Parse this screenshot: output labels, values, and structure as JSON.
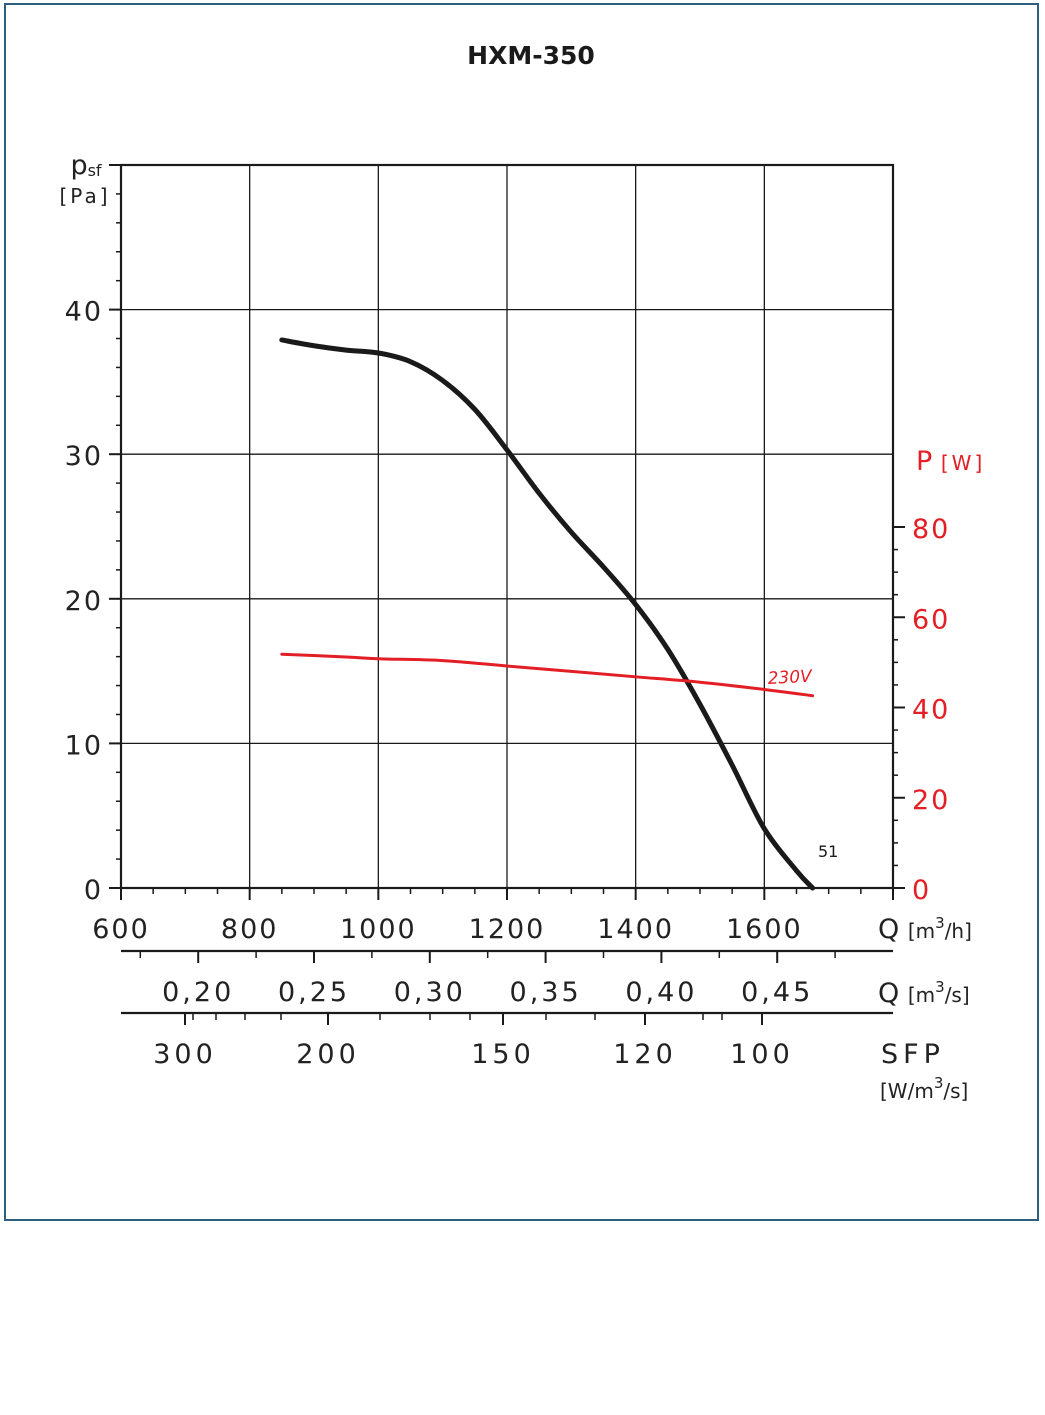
{
  "chart_data": {
    "type": "line",
    "title": "HXM-350",
    "left_axis": {
      "label_symbol": "p",
      "label_sub": "sf",
      "label_unit": "[Pa]",
      "range": [
        0,
        50
      ],
      "ticks": [
        0,
        10,
        20,
        30,
        40
      ],
      "tick_labels": [
        "0",
        "10",
        "20",
        "30",
        "40"
      ]
    },
    "right_axis": {
      "label_symbol": "P",
      "label_unit": "[W]",
      "color": "#e31e24",
      "range": [
        0,
        80
      ],
      "ticks": [
        0,
        20,
        40,
        60,
        80
      ],
      "tick_labels": [
        "0",
        "20",
        "40",
        "60",
        "80"
      ]
    },
    "x_axis_m3h": {
      "label": "Q",
      "unit_pre": "[m",
      "unit_sup": "3",
      "unit_post": "/h]",
      "range": [
        600,
        1800
      ],
      "ticks": [
        600,
        800,
        1000,
        1200,
        1400,
        1600
      ],
      "tick_labels": [
        "600",
        "800",
        "1000",
        "1200",
        "1400",
        "1600"
      ]
    },
    "x_axis_m3s": {
      "label": "Q",
      "unit_pre": "[m",
      "unit_sup": "3",
      "unit_post": "/s]",
      "ticks": [
        0.2,
        0.25,
        0.3,
        0.35,
        0.4,
        0.45
      ],
      "tick_labels": [
        "0,20",
        "0,25",
        "0,30",
        "0,35",
        "0,40",
        "0,45"
      ]
    },
    "sfp_axis": {
      "label": "SFP",
      "unit_pre": "[W/m",
      "unit_sup": "3",
      "unit_post": "/s]",
      "ticks": [
        300,
        200,
        150,
        120,
        100
      ],
      "tick_labels": [
        "300",
        "200",
        "150",
        "120",
        "100"
      ]
    },
    "grid": true,
    "series": [
      {
        "axis": "left",
        "color": "#1a1a1a",
        "end_label": "51",
        "x": [
          850,
          900,
          950,
          1000,
          1050,
          1100,
          1150,
          1200,
          1250,
          1300,
          1350,
          1400,
          1450,
          1500,
          1550,
          1600,
          1650,
          1675
        ],
        "y": [
          37.9,
          37.5,
          37.2,
          37.0,
          36.4,
          35.1,
          33.1,
          30.3,
          27.3,
          24.6,
          22.2,
          19.6,
          16.5,
          12.7,
          8.5,
          4.1,
          1.2,
          0
        ]
      },
      {
        "name": "230V",
        "axis": "right",
        "color": "#e31e24",
        "x": [
          850,
          950,
          1000,
          1100,
          1200,
          1300,
          1400,
          1500,
          1600,
          1675
        ],
        "y": [
          51.8,
          51.2,
          50.8,
          50.4,
          49.2,
          48.0,
          46.8,
          45.6,
          44.0,
          42.6
        ]
      }
    ]
  }
}
